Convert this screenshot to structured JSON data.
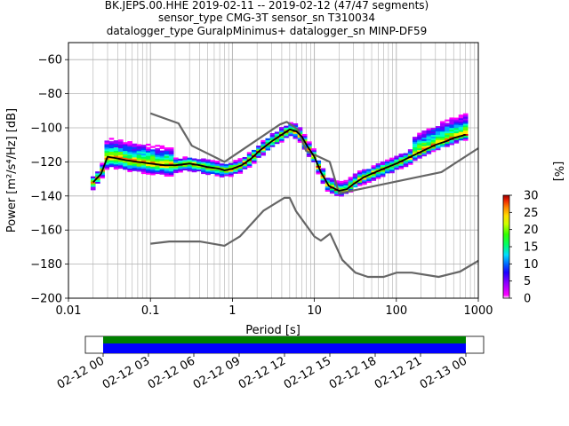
{
  "header": {
    "title_line1": "BK.JEPS.00.HHE   2019-02-11 -- 2019-02-12  (47/47 segments)",
    "title_line2": "sensor_type CMG-3T sensor_sn T310034",
    "title_line3": "datalogger_type GuralpMinimus+ datalogger_sn MINP-DF59"
  },
  "chart_data": {
    "type": "heatmap",
    "title": "BK.JEPS.00.HHE   2019-02-11 -- 2019-02-12  (47/47 segments)",
    "xlabel": "Period [s]",
    "ylabel": "Power [m²/s⁴/Hz] [dB]",
    "xscale": "log",
    "xlim": [
      0.01,
      1000
    ],
    "ylim": [
      -200,
      -50
    ],
    "x_ticks": [
      "0.01",
      "0.1",
      "1",
      "10",
      "100",
      "1000"
    ],
    "y_ticks": [
      "-60",
      "-80",
      "-100",
      "-120",
      "-140",
      "-160",
      "-180",
      "-200"
    ],
    "grid": true,
    "mean_curve": {
      "x": [
        0.02,
        0.025,
        0.03,
        0.04,
        0.05,
        0.07,
        0.1,
        0.15,
        0.2,
        0.3,
        0.4,
        0.5,
        0.7,
        0.8,
        1.0,
        1.3,
        1.7,
        2.2,
        3.0,
        4.0,
        5.0,
        6.0,
        7.0,
        8.0,
        10,
        12,
        15,
        20,
        25,
        30,
        40,
        50,
        70,
        100,
        150,
        200,
        300,
        400,
        500,
        700
      ],
      "y": [
        -132,
        -127,
        -117,
        -118,
        -119,
        -120,
        -121,
        -122,
        -122,
        -121,
        -122,
        -123,
        -124,
        -125,
        -124,
        -122,
        -118,
        -113,
        -108,
        -104,
        -101,
        -102,
        -105,
        -110,
        -117,
        -126,
        -134,
        -137,
        -136,
        -133,
        -129,
        -127,
        -124,
        -121,
        -117,
        -114,
        -110,
        -108,
        -106,
        -104
      ]
    },
    "nlnm": {
      "x": [
        0.1,
        0.17,
        0.4,
        0.8,
        1.24,
        2.4,
        4.3,
        5.0,
        6.0,
        10,
        12,
        15.6,
        21.9,
        31.6,
        45,
        70,
        101,
        154,
        328,
        600,
        1000
      ],
      "y": [
        -168,
        -166.7,
        -166.7,
        -169.2,
        -163.7,
        -148.6,
        -141.1,
        -141.1,
        -149,
        -163.8,
        -166.2,
        -162.1,
        -177.5,
        -185,
        -187.5,
        -187.5,
        -185,
        -185,
        -187.5,
        -184.4,
        -178
      ]
    },
    "nhnm": {
      "x": [
        0.1,
        0.22,
        0.32,
        0.8,
        3.8,
        4.6,
        6.3,
        7.9,
        15.4,
        20,
        354.8,
        1000
      ],
      "y": [
        -91.5,
        -97.4,
        -110.5,
        -120,
        -98,
        -96.5,
        -101,
        -113.5,
        -120,
        -138.5,
        -126,
        -112
      ]
    },
    "colorbar": {
      "label": "[%]",
      "range": [
        0,
        30
      ],
      "ticks": [
        "0",
        "5",
        "10",
        "15",
        "20",
        "25",
        "30"
      ]
    },
    "time_axis": {
      "ticks": [
        "02-12 00",
        "02-12 03",
        "02-12 06",
        "02-12 09",
        "02-12 12",
        "02-12 15",
        "02-12 18",
        "02-12 21",
        "02-13 00"
      ]
    }
  }
}
